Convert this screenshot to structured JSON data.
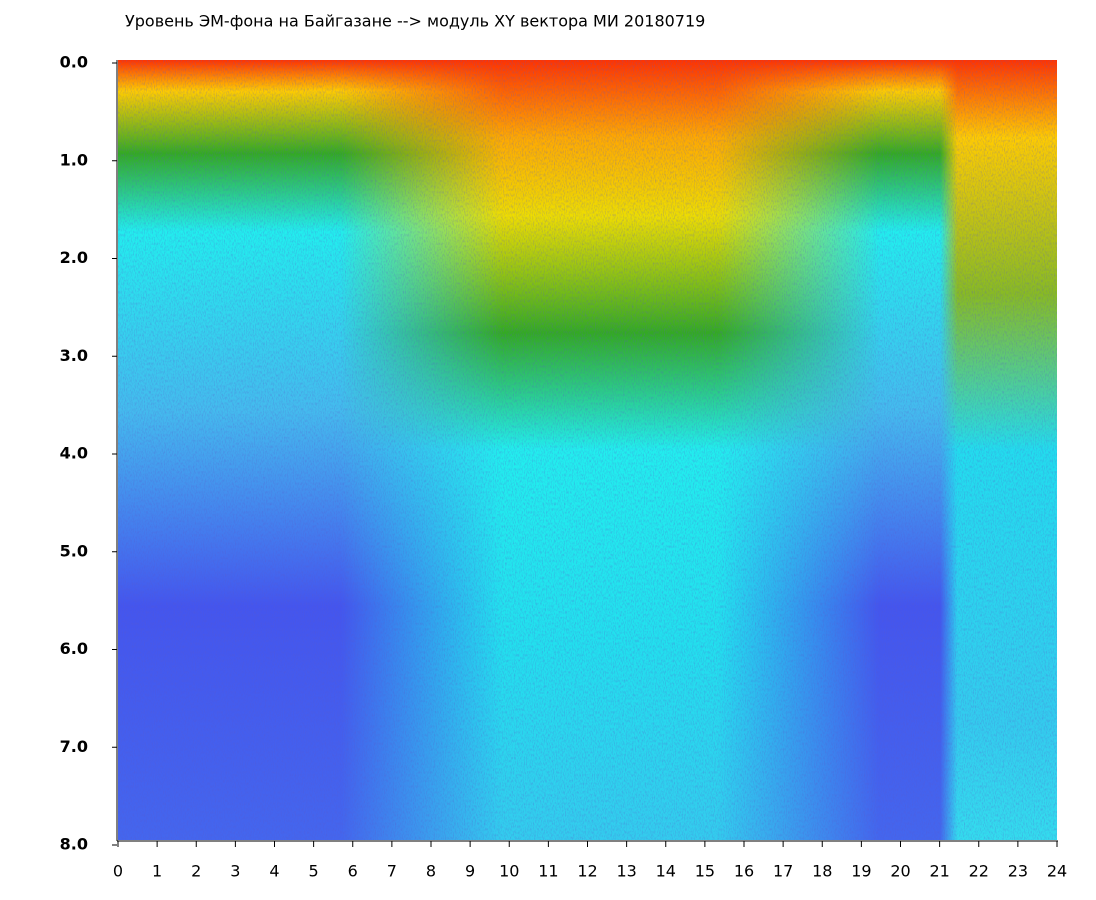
{
  "chart_data": {
    "type": "heatmap",
    "title": "Уровень ЭМ-фона на Байгазане  --> модуль XY вектора МИ  20180719",
    "xlim": [
      0,
      24
    ],
    "xticks": [
      0,
      1,
      2,
      3,
      4,
      5,
      6,
      7,
      8,
      9,
      10,
      11,
      12,
      13,
      14,
      15,
      16,
      17,
      18,
      19,
      20,
      21,
      22,
      23,
      24
    ],
    "ylim": [
      8,
      0
    ],
    "yticks": [
      {
        "value": 0,
        "label": "0.0"
      },
      {
        "value": 1,
        "label": "1.0"
      },
      {
        "value": 2,
        "label": "2.0"
      },
      {
        "value": 3,
        "label": "3.0"
      },
      {
        "value": 4,
        "label": "4.0"
      },
      {
        "value": 5,
        "label": "5.0"
      },
      {
        "value": 6,
        "label": "6.0"
      },
      {
        "value": 7,
        "label": "7.0"
      },
      {
        "value": 8,
        "label": "8.0"
      }
    ]
  }
}
